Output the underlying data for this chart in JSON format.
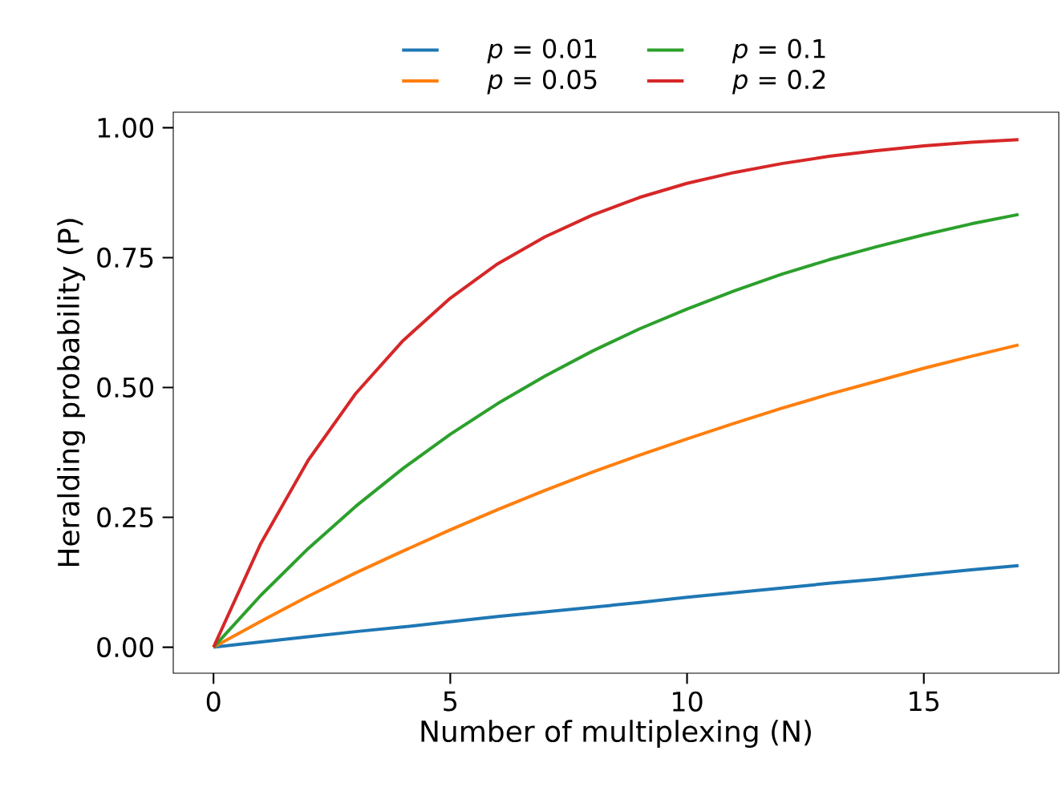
{
  "chart_data": {
    "type": "line",
    "xlabel": "Number of multiplexing (N)",
    "ylabel": "Heralding probability (P)",
    "x": [
      0,
      1,
      2,
      3,
      4,
      5,
      6,
      7,
      8,
      9,
      10,
      11,
      12,
      13,
      14,
      15,
      16,
      17
    ],
    "series": [
      {
        "name": "*p* = 0.01",
        "color": "#1f77b4",
        "values": [
          0,
          0.01,
          0.02,
          0.03,
          0.039,
          0.049,
          0.059,
          0.068,
          0.077,
          0.086,
          0.096,
          0.105,
          0.114,
          0.123,
          0.131,
          0.14,
          0.149,
          0.157
        ]
      },
      {
        "name": "*p* = 0.05",
        "color": "#ff7f0e",
        "values": [
          0,
          0.05,
          0.098,
          0.143,
          0.185,
          0.226,
          0.265,
          0.302,
          0.337,
          0.37,
          0.401,
          0.431,
          0.46,
          0.487,
          0.512,
          0.537,
          0.56,
          0.582
        ]
      },
      {
        "name": "*p* = 0.1",
        "color": "#2ca02c",
        "values": [
          0,
          0.1,
          0.19,
          0.271,
          0.344,
          0.41,
          0.469,
          0.522,
          0.57,
          0.613,
          0.651,
          0.686,
          0.718,
          0.746,
          0.771,
          0.794,
          0.815,
          0.833
        ]
      },
      {
        "name": "*p* = 0.2",
        "color": "#d62728",
        "values": [
          0,
          0.2,
          0.36,
          0.488,
          0.59,
          0.672,
          0.738,
          0.79,
          0.832,
          0.866,
          0.893,
          0.914,
          0.931,
          0.945,
          0.956,
          0.965,
          0.972,
          0.977
        ]
      }
    ],
    "xlim": [
      -0.85,
      17.85
    ],
    "ylim": [
      -0.05,
      1.03
    ],
    "xticks": [
      0,
      5,
      10,
      15
    ],
    "yticks": [
      {
        "value": 0,
        "label": "0.00"
      },
      {
        "value": 0.25,
        "label": "0.25"
      },
      {
        "value": 0.5,
        "label": "0.50"
      },
      {
        "value": 0.75,
        "label": "0.75"
      },
      {
        "value": 1,
        "label": "1.00"
      }
    ],
    "grid": false,
    "legend": "top",
    "marker": "none",
    "line_style": "solid"
  }
}
